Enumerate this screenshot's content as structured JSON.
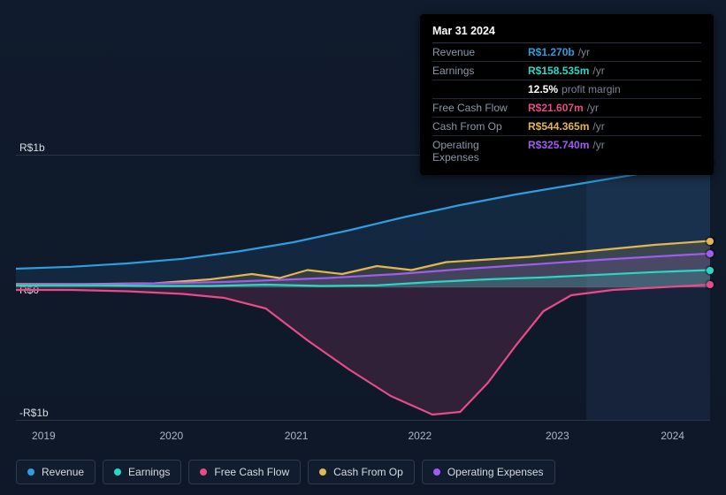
{
  "chart": {
    "type": "area",
    "background_color": "#0f1a2b",
    "axis_color": "#2a3442",
    "label_color": "#d7dce3",
    "highlight_start_x": 0.822,
    "highlight_color": "#17233a",
    "y_labels": {
      "top": "R$1b",
      "zero": "R$0",
      "bottom": "-R$1b"
    },
    "x_labels": [
      "2019",
      "2020",
      "2021",
      "2022",
      "2023",
      "2024"
    ],
    "x_positions": [
      0.04,
      0.224,
      0.404,
      0.582,
      0.78,
      0.946
    ],
    "legend": [
      {
        "label": "Revenue",
        "color": "#2f9ddf"
      },
      {
        "label": "Earnings",
        "color": "#2ad7c2"
      },
      {
        "label": "Free Cash Flow",
        "color": "#e54c8a"
      },
      {
        "label": "Cash From Op",
        "color": "#e2b652"
      },
      {
        "label": "Operating Expenses",
        "color": "#a05cef"
      }
    ],
    "series": {
      "revenue": {
        "color": "#2f9ddf",
        "points": [
          [
            0.0,
            0.14
          ],
          [
            0.08,
            0.155
          ],
          [
            0.16,
            0.18
          ],
          [
            0.24,
            0.215
          ],
          [
            0.32,
            0.27
          ],
          [
            0.4,
            0.34
          ],
          [
            0.48,
            0.43
          ],
          [
            0.56,
            0.53
          ],
          [
            0.64,
            0.62
          ],
          [
            0.72,
            0.7
          ],
          [
            0.8,
            0.77
          ],
          [
            0.88,
            0.84
          ],
          [
            0.96,
            0.91
          ],
          [
            1.0,
            0.94
          ]
        ]
      },
      "cash_from_op": {
        "color": "#e2b652",
        "points": [
          [
            0.0,
            0.025
          ],
          [
            0.1,
            0.025
          ],
          [
            0.2,
            0.03
          ],
          [
            0.28,
            0.06
          ],
          [
            0.34,
            0.1
          ],
          [
            0.38,
            0.07
          ],
          [
            0.42,
            0.13
          ],
          [
            0.47,
            0.1
          ],
          [
            0.52,
            0.16
          ],
          [
            0.57,
            0.13
          ],
          [
            0.62,
            0.19
          ],
          [
            0.68,
            0.21
          ],
          [
            0.74,
            0.23
          ],
          [
            0.8,
            0.26
          ],
          [
            0.86,
            0.29
          ],
          [
            0.92,
            0.32
          ],
          [
            1.0,
            0.35
          ]
        ]
      },
      "operating_expenses": {
        "color": "#a05cef",
        "points": [
          [
            0.0,
            0.02
          ],
          [
            0.15,
            0.025
          ],
          [
            0.3,
            0.04
          ],
          [
            0.45,
            0.07
          ],
          [
            0.55,
            0.1
          ],
          [
            0.65,
            0.14
          ],
          [
            0.75,
            0.175
          ],
          [
            0.85,
            0.21
          ],
          [
            0.93,
            0.235
          ],
          [
            1.0,
            0.255
          ]
        ]
      },
      "earnings": {
        "color": "#2ad7c2",
        "points": [
          [
            0.0,
            0.015
          ],
          [
            0.12,
            0.015
          ],
          [
            0.2,
            0.01
          ],
          [
            0.28,
            0.01
          ],
          [
            0.36,
            0.02
          ],
          [
            0.44,
            0.01
          ],
          [
            0.52,
            0.015
          ],
          [
            0.6,
            0.04
          ],
          [
            0.68,
            0.06
          ],
          [
            0.76,
            0.075
          ],
          [
            0.84,
            0.095
          ],
          [
            0.92,
            0.115
          ],
          [
            1.0,
            0.13
          ]
        ]
      },
      "free_cash_flow": {
        "color": "#e54c8a",
        "points": [
          [
            0.0,
            -0.02
          ],
          [
            0.08,
            -0.02
          ],
          [
            0.16,
            -0.03
          ],
          [
            0.24,
            -0.05
          ],
          [
            0.3,
            -0.08
          ],
          [
            0.36,
            -0.16
          ],
          [
            0.42,
            -0.4
          ],
          [
            0.48,
            -0.62
          ],
          [
            0.54,
            -0.82
          ],
          [
            0.6,
            -0.96
          ],
          [
            0.64,
            -0.94
          ],
          [
            0.68,
            -0.72
          ],
          [
            0.72,
            -0.44
          ],
          [
            0.76,
            -0.18
          ],
          [
            0.8,
            -0.06
          ],
          [
            0.86,
            -0.02
          ],
          [
            0.93,
            0.0
          ],
          [
            1.0,
            0.02
          ]
        ]
      }
    }
  },
  "tooltip": {
    "date": "Mar 31 2024",
    "rows": [
      {
        "label": "Revenue",
        "value": "R$1.270b",
        "suffix": "/yr",
        "color": "#2f9ddf"
      },
      {
        "label": "Earnings",
        "value": "R$158.535m",
        "suffix": "/yr",
        "color": "#2ad7c2"
      },
      {
        "label": "",
        "value": "12.5%",
        "suffix": "profit margin",
        "color": "#ffffff"
      },
      {
        "label": "Free Cash Flow",
        "value": "R$21.607m",
        "suffix": "/yr",
        "color": "#e54c8a"
      },
      {
        "label": "Cash From Op",
        "value": "R$544.365m",
        "suffix": "/yr",
        "color": "#e2b652"
      },
      {
        "label": "Operating Expenses",
        "value": "R$325.740m",
        "suffix": "/yr",
        "color": "#a05cef"
      }
    ]
  }
}
